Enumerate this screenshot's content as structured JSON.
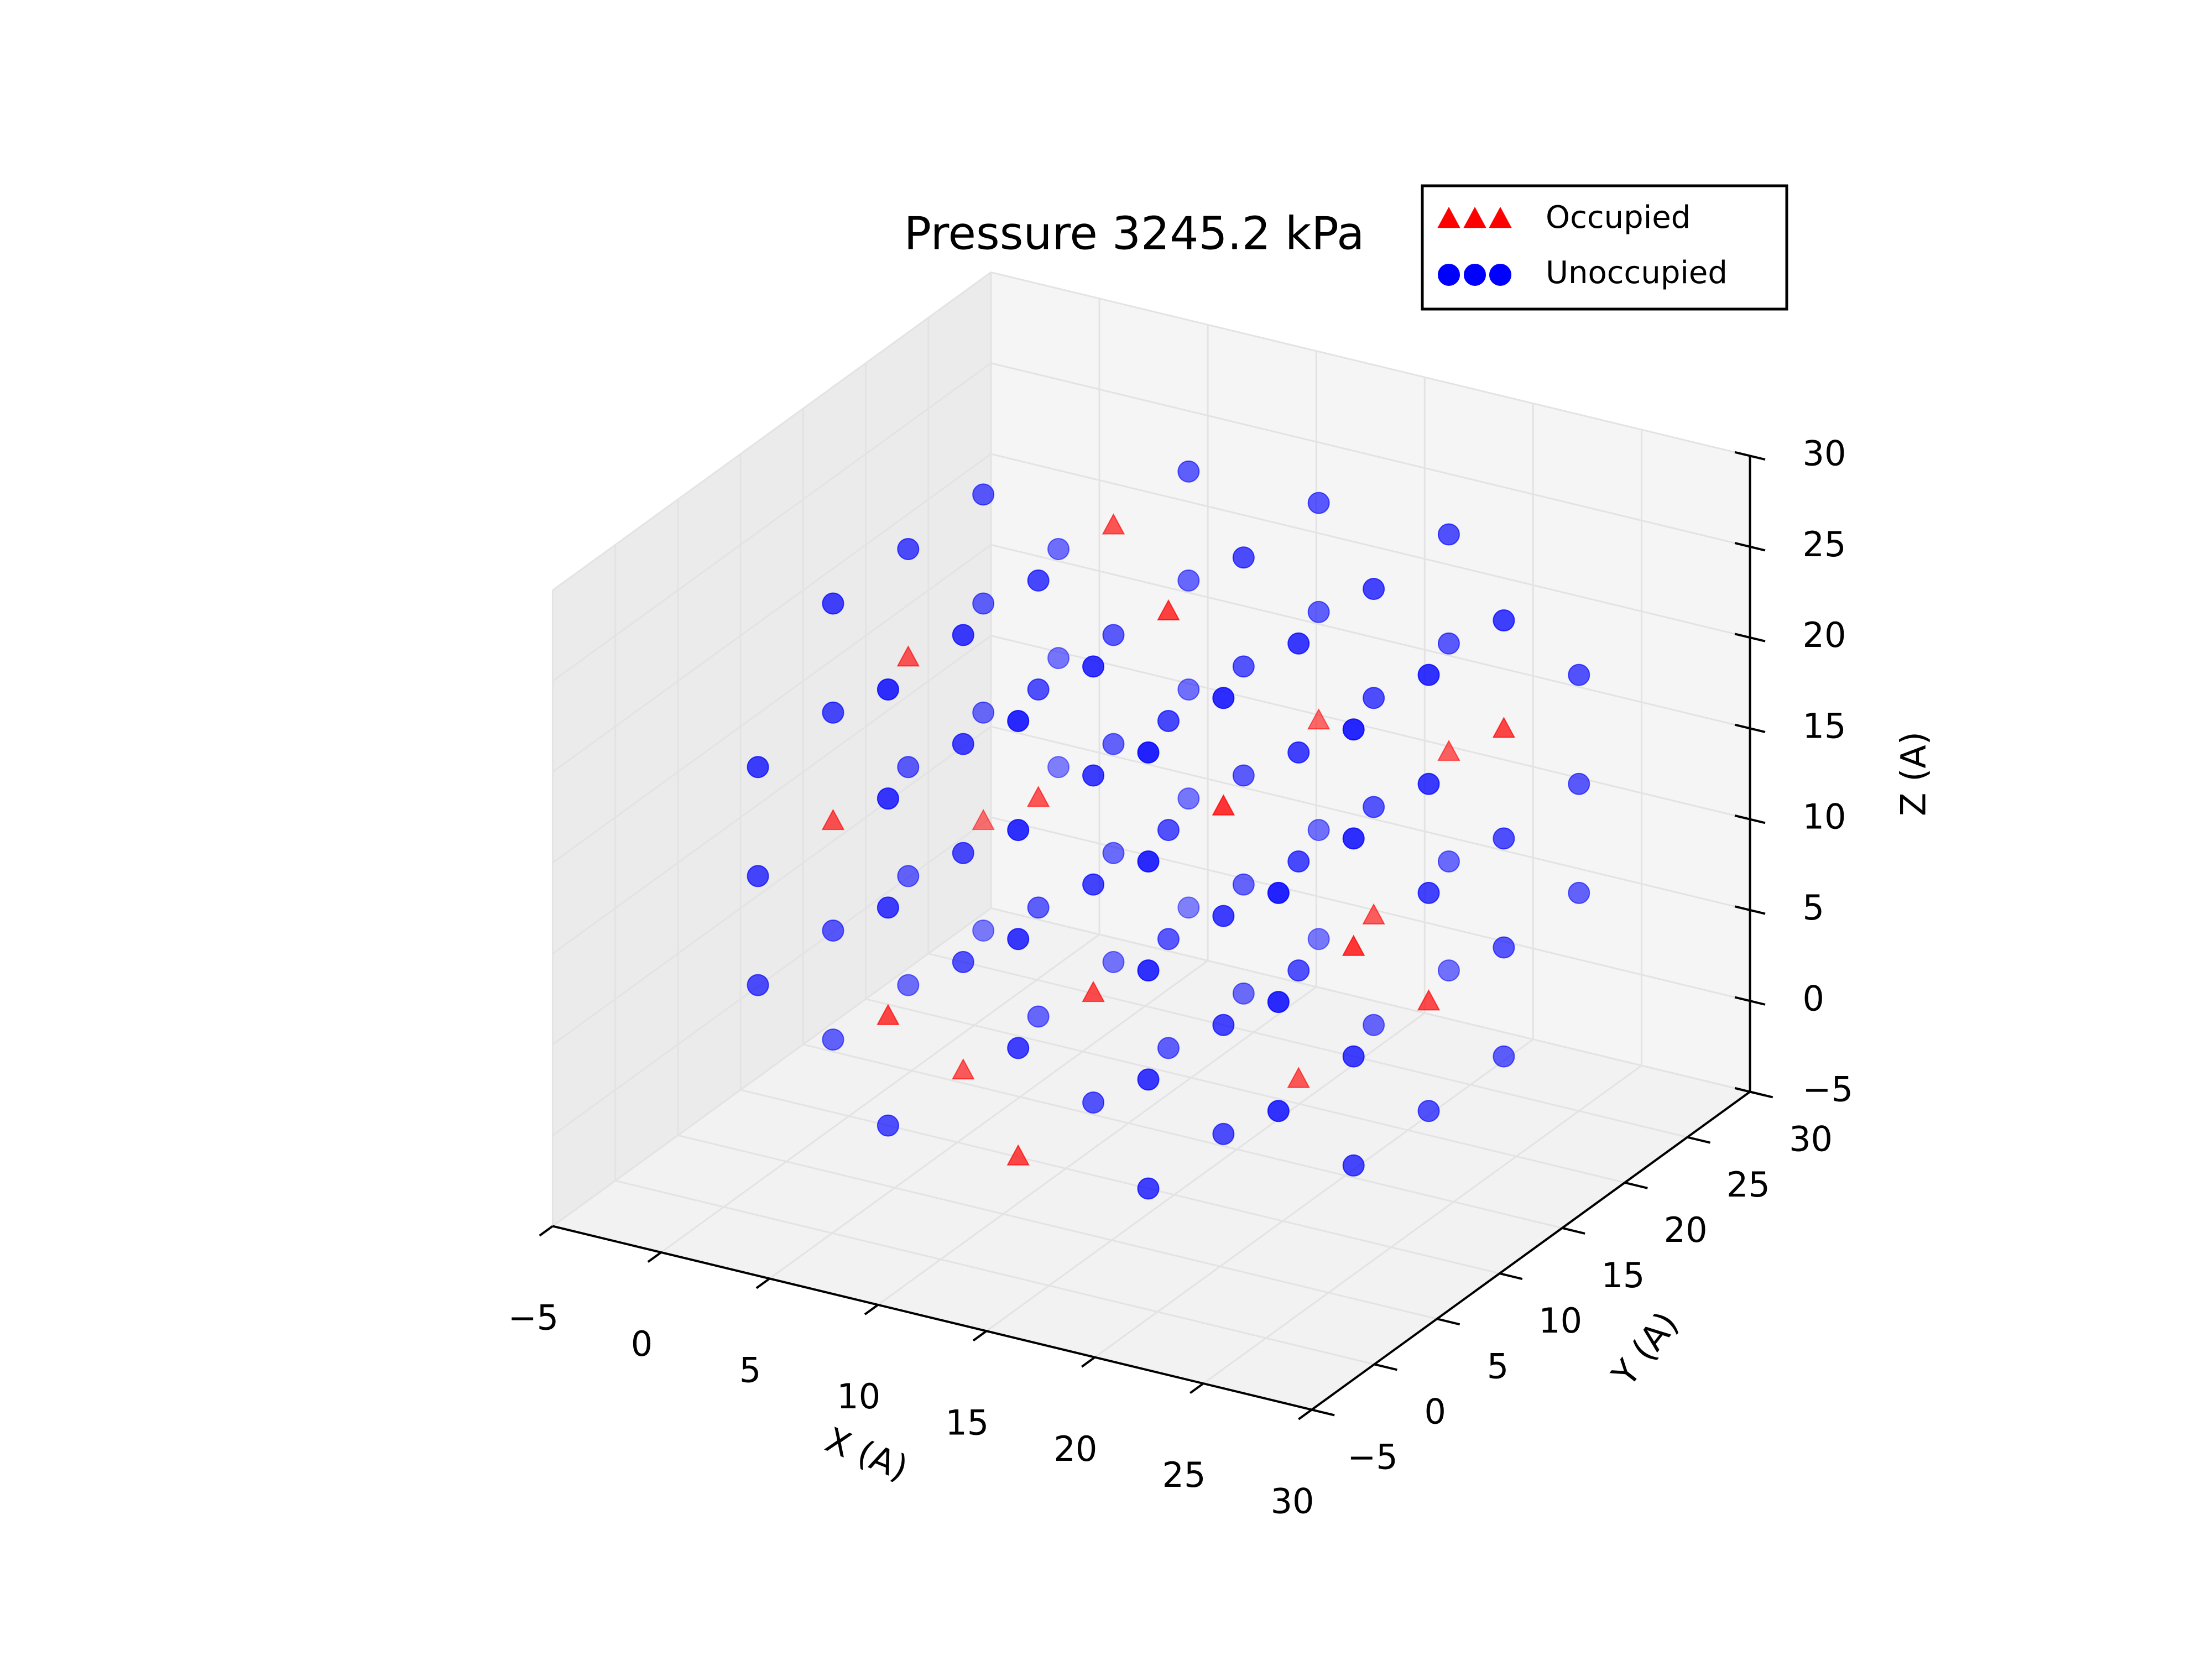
{
  "chart_data": {
    "type": "scatter3d",
    "title": "Pressure 3245.2 kPa",
    "xlabel": "X (A)",
    "ylabel": "Y (A)",
    "zlabel": "Z (A)",
    "xlim": [
      -5,
      30
    ],
    "ylim": [
      -5,
      30
    ],
    "zlim": [
      -5,
      30
    ],
    "xticks": [
      {
        "value": -5,
        "label": "−5"
      },
      0,
      5,
      10,
      15,
      20,
      25,
      30
    ],
    "yticks": [
      {
        "value": -5,
        "label": "−5"
      },
      0,
      5,
      10,
      15,
      20,
      25,
      30
    ],
    "zticks": [
      {
        "value": -5,
        "label": "−5"
      },
      0,
      5,
      10,
      15,
      20,
      25,
      30
    ],
    "grid": true,
    "legend": "upper right",
    "series": [
      {
        "name": "Occupied",
        "color": "#ff0000",
        "marker": "triangle",
        "x": [
          1,
          1,
          7,
          7,
          13,
          13,
          19,
          19,
          25,
          25,
          13,
          7,
          19,
          1,
          25,
          13,
          7,
          19
        ],
        "y": [
          7,
          13,
          1,
          19,
          1,
          25,
          7,
          13,
          13,
          7,
          13,
          7,
          19,
          19,
          19,
          7,
          13,
          25
        ],
        "z": [
          13,
          19,
          7,
          25,
          1,
          13,
          19,
          1,
          7,
          13,
          25,
          1,
          7,
          7,
          19,
          7,
          13,
          13
        ]
      },
      {
        "name": "Unoccupied",
        "color": "#0000ff",
        "marker": "circle",
        "x": [
          1,
          1,
          1,
          1,
          1,
          1,
          1,
          1,
          1,
          1,
          1,
          1,
          1,
          1,
          1,
          1,
          1,
          1,
          7,
          7,
          7,
          7,
          7,
          7,
          7,
          7,
          7,
          7,
          7,
          7,
          7,
          7,
          7,
          7,
          7,
          7,
          7,
          7,
          7,
          13,
          13,
          13,
          13,
          13,
          13,
          13,
          13,
          13,
          13,
          13,
          13,
          13,
          13,
          13,
          13,
          13,
          13,
          13,
          13,
          13,
          19,
          19,
          19,
          19,
          19,
          19,
          19,
          19,
          19,
          19,
          19,
          19,
          19,
          19,
          19,
          19,
          19,
          19,
          19,
          19,
          19,
          25,
          25,
          25,
          25,
          25,
          25,
          25,
          25,
          25,
          25,
          25,
          25,
          25,
          25,
          25,
          25,
          25,
          25
        ],
        "y": [
          1,
          1,
          1,
          7,
          7,
          7,
          7,
          13,
          13,
          13,
          13,
          19,
          19,
          19,
          19,
          25,
          25,
          25,
          1,
          1,
          1,
          1,
          7,
          7,
          7,
          7,
          13,
          13,
          13,
          13,
          19,
          19,
          19,
          19,
          25,
          25,
          25,
          25,
          25,
          1,
          1,
          1,
          1,
          7,
          7,
          7,
          7,
          13,
          13,
          13,
          13,
          19,
          19,
          19,
          19,
          19,
          25,
          25,
          25,
          25,
          1,
          1,
          1,
          1,
          1,
          7,
          7,
          7,
          7,
          13,
          13,
          13,
          13,
          19,
          19,
          19,
          19,
          25,
          25,
          25,
          25,
          1,
          1,
          1,
          7,
          7,
          7,
          7,
          13,
          13,
          13,
          13,
          19,
          19,
          19,
          19,
          25,
          25,
          25
        ],
        "z": [
          7,
          13,
          19,
          1,
          7,
          19,
          25,
          1,
          7,
          13,
          25,
          1,
          13,
          19,
          25,
          7,
          13,
          19,
          1,
          13,
          19,
          25,
          7,
          13,
          19,
          25,
          1,
          7,
          19,
          25,
          1,
          7,
          13,
          19,
          1,
          7,
          13,
          19,
          25,
          7,
          13,
          19,
          25,
          1,
          13,
          19,
          25,
          1,
          7,
          13,
          19,
          1,
          7,
          13,
          19,
          25,
          1,
          7,
          19,
          25,
          1,
          7,
          13,
          19,
          25,
          1,
          7,
          13,
          25,
          7,
          13,
          19,
          25,
          1,
          13,
          19,
          25,
          1,
          7,
          19,
          25,
          7,
          13,
          19,
          1,
          7,
          19,
          25,
          1,
          13,
          19,
          25,
          1,
          7,
          13,
          25,
          7,
          13,
          19
        ]
      }
    ]
  }
}
